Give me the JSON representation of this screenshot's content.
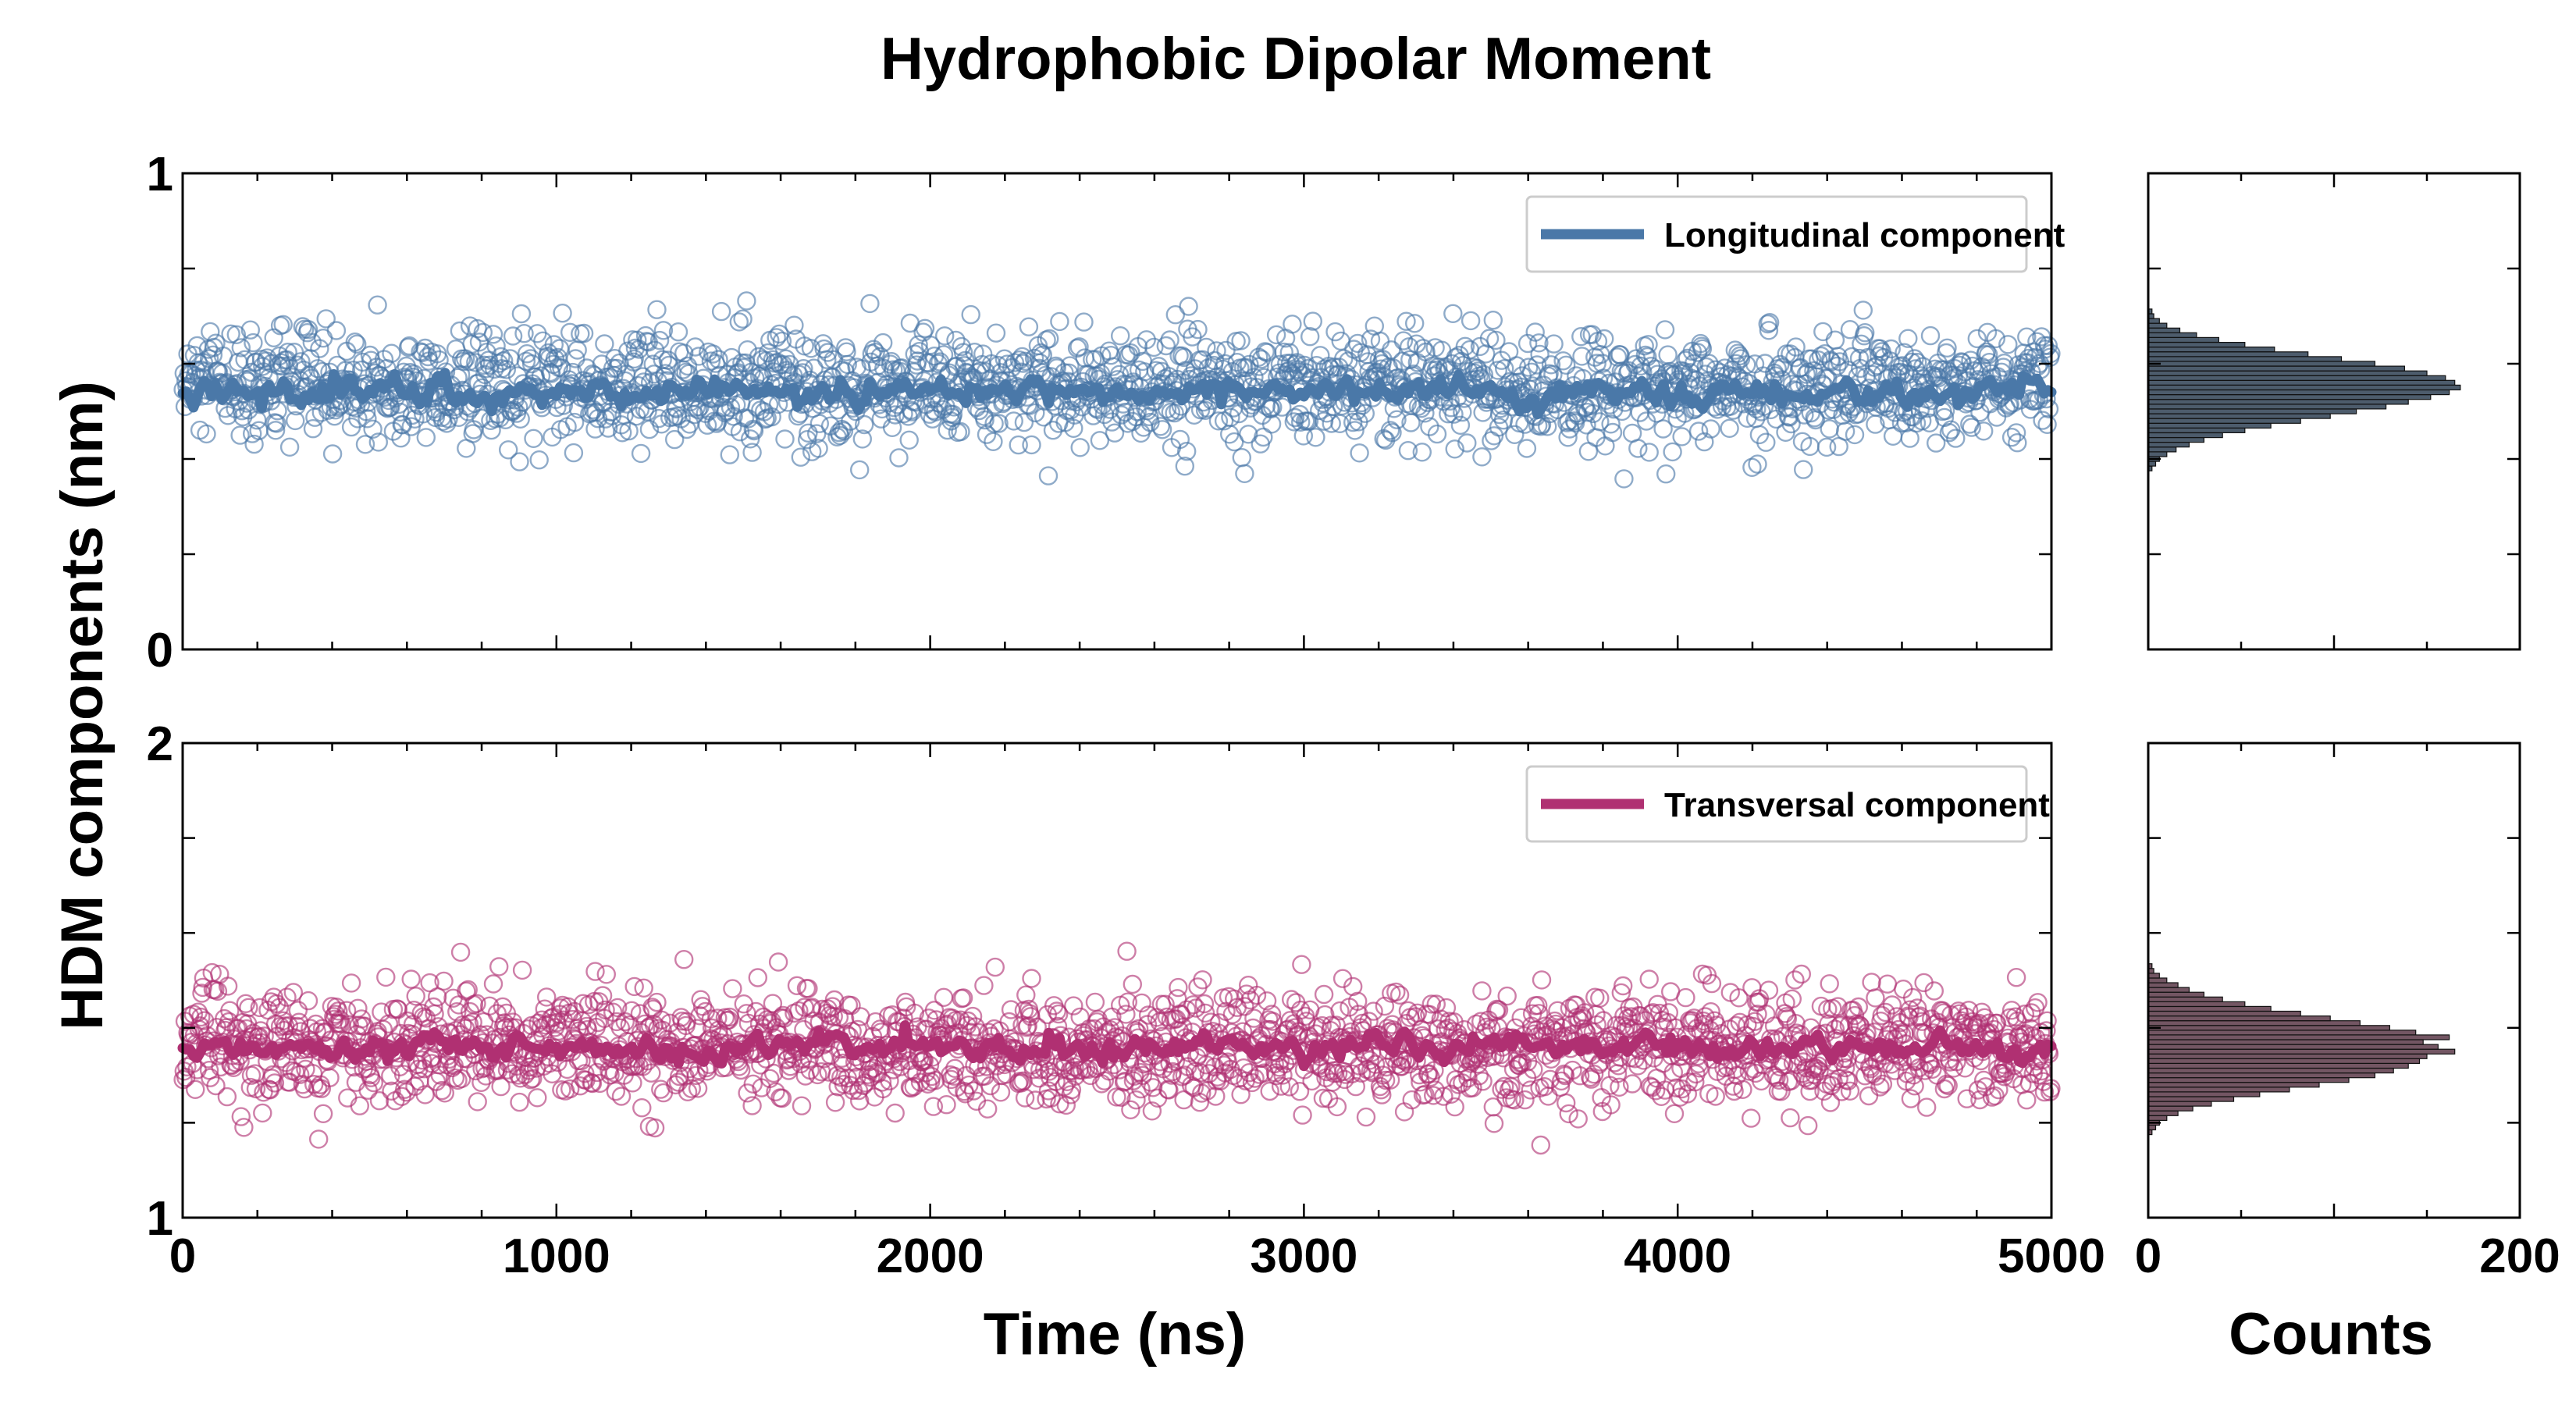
{
  "chart_data": {
    "type": "scatter",
    "title": "Hydrophobic Dipolar Moment",
    "ylabel": "HDM components (nm)",
    "colors": {
      "longitudinal": "#4a78a8",
      "transversal": "#b03072",
      "hist_top": "#2e3f52",
      "hist_bottom": "#5a3848"
    },
    "panels": [
      {
        "name": "top",
        "series_name": "Longitudinal component",
        "legend_position": "top-right",
        "xlabel": "",
        "xlim": [
          0,
          5000
        ],
        "ylim": [
          0,
          1
        ],
        "yticks": [
          0,
          1
        ],
        "xticks": [
          0,
          1000,
          2000,
          3000,
          4000,
          5000
        ],
        "show_xtick_labels": false,
        "scatter_mean": 0.55,
        "scatter_sd": 0.06,
        "scatter_points": 2000,
        "running_average": {
          "mean": 0.54,
          "sd": 0.022
        },
        "hist": {
          "xlim": [
            0,
            200
          ],
          "xticks": [
            0,
            200
          ],
          "show_xtick_labels": false,
          "centers": [
            0.38,
            0.39,
            0.4,
            0.41,
            0.42,
            0.43,
            0.44,
            0.45,
            0.46,
            0.47,
            0.48,
            0.49,
            0.5,
            0.51,
            0.52,
            0.53,
            0.54,
            0.55,
            0.56,
            0.57,
            0.58,
            0.59,
            0.6,
            0.61,
            0.62,
            0.63,
            0.64,
            0.65,
            0.66,
            0.67,
            0.68,
            0.69,
            0.7,
            0.71
          ],
          "counts": [
            2,
            4,
            6,
            10,
            15,
            22,
            30,
            40,
            52,
            66,
            82,
            98,
            112,
            128,
            140,
            152,
            162,
            168,
            165,
            160,
            150,
            138,
            122,
            104,
            86,
            68,
            52,
            38,
            26,
            17,
            10,
            6,
            3,
            2
          ]
        }
      },
      {
        "name": "bottom",
        "series_name": "Transversal component",
        "legend_position": "top-right",
        "xlabel": "Time (ns)",
        "xlim": [
          0,
          5000
        ],
        "ylim": [
          1,
          2
        ],
        "yticks": [
          1,
          2
        ],
        "xticks": [
          0,
          1000,
          2000,
          3000,
          4000,
          5000
        ],
        "show_xtick_labels": true,
        "scatter_mean": 1.36,
        "scatter_sd": 0.06,
        "scatter_points": 2000,
        "running_average": {
          "mean": 1.36,
          "sd": 0.022
        },
        "hist": {
          "xlim": [
            0,
            200
          ],
          "xticks": [
            0,
            200
          ],
          "show_xtick_labels": true,
          "xlabel": "Counts",
          "centers": [
            1.18,
            1.19,
            1.2,
            1.21,
            1.22,
            1.23,
            1.24,
            1.25,
            1.26,
            1.27,
            1.28,
            1.29,
            1.3,
            1.31,
            1.32,
            1.33,
            1.34,
            1.35,
            1.36,
            1.37,
            1.38,
            1.39,
            1.4,
            1.41,
            1.42,
            1.43,
            1.44,
            1.45,
            1.46,
            1.47,
            1.48,
            1.49,
            1.5,
            1.51,
            1.52,
            1.53
          ],
          "counts": [
            2,
            4,
            6,
            10,
            16,
            24,
            34,
            46,
            60,
            76,
            92,
            108,
            122,
            132,
            140,
            146,
            150,
            165,
            156,
            148,
            162,
            144,
            130,
            114,
            98,
            82,
            66,
            52,
            40,
            30,
            22,
            16,
            10,
            6,
            3,
            2
          ]
        }
      }
    ]
  }
}
